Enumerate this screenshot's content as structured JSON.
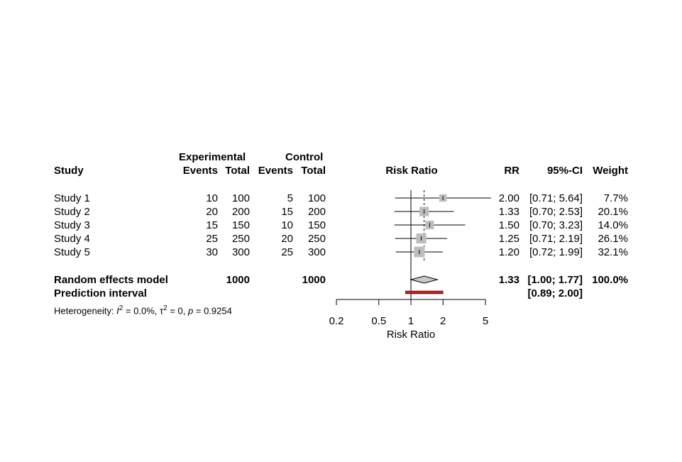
{
  "headers": {
    "study": "Study",
    "experimental": "Experimental",
    "control": "Control",
    "events_exp": "Events",
    "total_exp": "Total",
    "events_ctrl": "Events",
    "total_ctrl": "Total",
    "plot": "Risk Ratio",
    "rr": "RR",
    "ci": "95%-CI",
    "weight": "Weight"
  },
  "studies": [
    {
      "name": "Study 1",
      "e_events": "10",
      "e_total": "100",
      "c_events": "5",
      "c_total": "100",
      "rr": "2.00",
      "ci": "[0.71; 5.64]",
      "weight": "7.7%"
    },
    {
      "name": "Study 2",
      "e_events": "20",
      "e_total": "200",
      "c_events": "15",
      "c_total": "200",
      "rr": "1.33",
      "ci": "[0.70; 2.53]",
      "weight": "20.1%"
    },
    {
      "name": "Study 3",
      "e_events": "15",
      "e_total": "150",
      "c_events": "10",
      "c_total": "150",
      "rr": "1.50",
      "ci": "[0.70; 3.23]",
      "weight": "14.0%"
    },
    {
      "name": "Study 4",
      "e_events": "25",
      "e_total": "250",
      "c_events": "20",
      "c_total": "250",
      "rr": "1.25",
      "ci": "[0.71; 2.19]",
      "weight": "26.1%"
    },
    {
      "name": "Study 5",
      "e_events": "30",
      "e_total": "300",
      "c_events": "25",
      "c_total": "300",
      "rr": "1.20",
      "ci": "[0.72; 1.99]",
      "weight": "32.1%"
    }
  ],
  "random_effects": {
    "label": "Random effects model",
    "e_total": "1000",
    "c_total": "1000",
    "rr": "1.33",
    "ci": "[1.00; 1.77]",
    "weight": "100.0%"
  },
  "prediction": {
    "label": "Prediction interval",
    "ci": "[0.89; 2.00]"
  },
  "heterogeneity": {
    "prefix": "Heterogeneity: ",
    "i2_symbol": "I",
    "i2_exp": "2",
    "i2_value": " = 0.0%, ",
    "tau_symbol": "τ",
    "tau_exp": "2",
    "tau_value": " = 0, ",
    "p_symbol": "p",
    "p_value": " = 0.9254"
  },
  "colors": {
    "square": "#bdbdbd",
    "diamond": "#c8c8c8",
    "prediction_bar": "#b22222",
    "line": "#000000"
  },
  "chart_data": {
    "type": "forest",
    "xlabel": "Risk Ratio",
    "x_scale": "log",
    "xlim": [
      0.2,
      5
    ],
    "x_ticks": [
      0.2,
      0.5,
      1,
      2,
      5
    ],
    "x_tick_labels": [
      "0.2",
      "0.5",
      "1",
      "2",
      "5"
    ],
    "null_value": 1,
    "studies": [
      {
        "name": "Study 1",
        "rr": 2.0,
        "lower": 0.71,
        "upper": 5.64,
        "weight": 7.7
      },
      {
        "name": "Study 2",
        "rr": 1.33,
        "lower": 0.7,
        "upper": 2.53,
        "weight": 20.1
      },
      {
        "name": "Study 3",
        "rr": 1.5,
        "lower": 0.7,
        "upper": 3.23,
        "weight": 14.0
      },
      {
        "name": "Study 4",
        "rr": 1.25,
        "lower": 0.71,
        "upper": 2.19,
        "weight": 26.1
      },
      {
        "name": "Study 5",
        "rr": 1.2,
        "lower": 0.72,
        "upper": 1.99,
        "weight": 32.1
      }
    ],
    "pooled": {
      "rr": 1.33,
      "lower": 1.0,
      "upper": 1.77
    },
    "prediction_interval": {
      "lower": 0.89,
      "upper": 2.0
    }
  }
}
